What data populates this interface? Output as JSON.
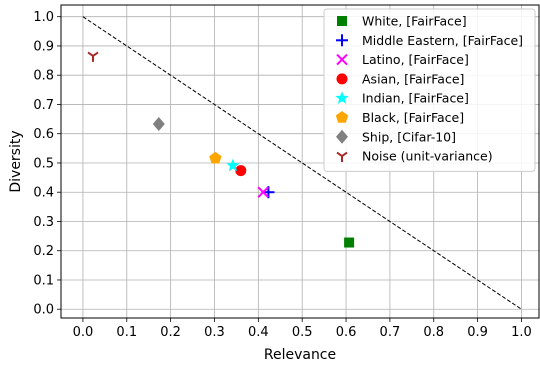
{
  "chart_data": {
    "type": "scatter",
    "title": "",
    "xlabel": "Relevance",
    "ylabel": "Diversity",
    "xlim": [
      -0.05,
      1.04
    ],
    "ylim": [
      -0.03,
      1.04
    ],
    "xticks": [
      "0.0",
      "0.1",
      "0.2",
      "0.3",
      "0.4",
      "0.5",
      "0.6",
      "0.7",
      "0.8",
      "0.9",
      "1.0"
    ],
    "yticks": [
      "0.0",
      "0.1",
      "0.2",
      "0.3",
      "0.4",
      "0.5",
      "0.6",
      "0.7",
      "0.8",
      "0.9",
      "1.0"
    ],
    "grid": true,
    "legend_position": "upper-right",
    "reference_line": {
      "style": "dashed",
      "color": "#000000",
      "from": [
        0,
        1
      ],
      "to": [
        1,
        0
      ]
    },
    "series": [
      {
        "name": "White, [FairFace]",
        "marker": "square",
        "color": "#008000",
        "x": 0.607,
        "y": 0.228
      },
      {
        "name": "Middle Eastern, [FairFace]",
        "marker": "plus",
        "color": "#0000ff",
        "x": 0.423,
        "y": 0.4
      },
      {
        "name": "Latino, [FairFace]",
        "marker": "x",
        "color": "#ff00ff",
        "x": 0.411,
        "y": 0.4
      },
      {
        "name": "Asian, [FairFace]",
        "marker": "circle",
        "color": "#ff0000",
        "x": 0.36,
        "y": 0.474
      },
      {
        "name": "Indian, [FairFace]",
        "marker": "star",
        "color": "#00ffff",
        "x": 0.342,
        "y": 0.491
      },
      {
        "name": "Black, [FairFace]",
        "marker": "pentagon",
        "color": "#ffa500",
        "x": 0.302,
        "y": 0.516
      },
      {
        "name": "Ship, [Cifar-10]",
        "marker": "diamond",
        "color": "#808080",
        "x": 0.173,
        "y": 0.633
      },
      {
        "name": "Noise (unit-variance)",
        "marker": "tri-down",
        "color": "#a52a2a",
        "x": 0.023,
        "y": 0.866
      }
    ]
  }
}
